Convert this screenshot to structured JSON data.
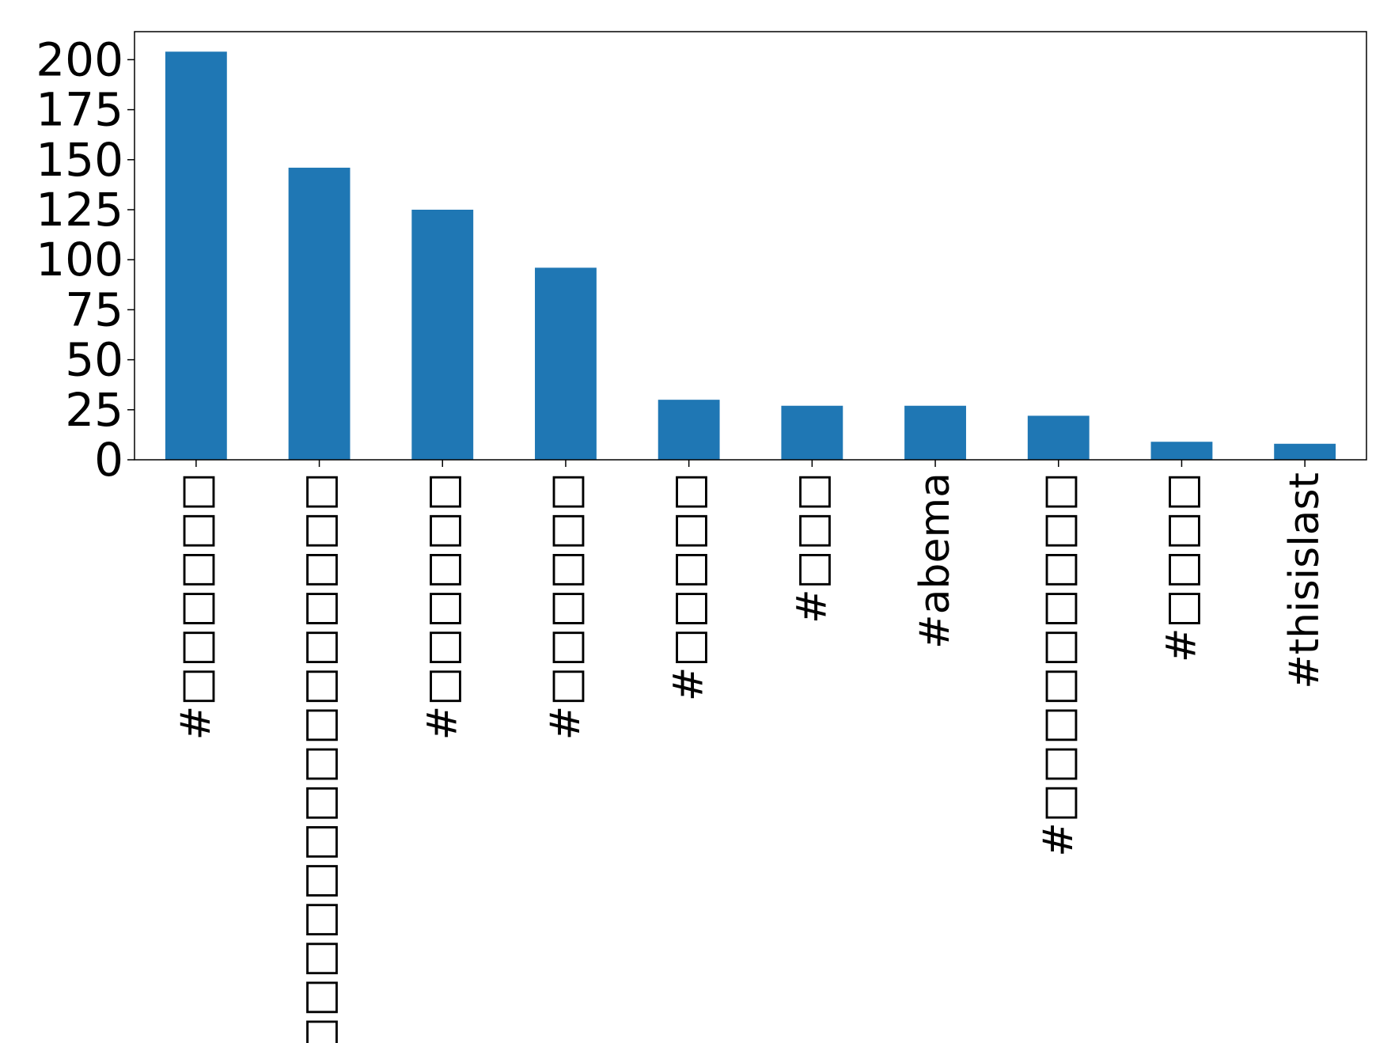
{
  "chart_data": {
    "type": "bar",
    "title": "",
    "xlabel": "",
    "ylabel": "",
    "ylim": [
      0,
      214
    ],
    "yticks": [
      0,
      25,
      50,
      75,
      100,
      125,
      150,
      175,
      200
    ],
    "ytick_labels": [
      "0",
      "25",
      "50",
      "75",
      "100",
      "125",
      "150",
      "175",
      "200"
    ],
    "categories": [
      "#□□□□□□",
      "#□□□□□□□□□□□□□□□",
      "#□□□□□□",
      "#□□□□□□",
      "#□□□□□",
      "#□□□",
      "#abema",
      "#□□□□□□□□□",
      "#□□□□",
      "#thisislast"
    ],
    "values": [
      204,
      146,
      125,
      96,
      30,
      27,
      27,
      22,
      9,
      8
    ],
    "bar_color": "#1f77b4",
    "grid": false,
    "legend": "none"
  }
}
